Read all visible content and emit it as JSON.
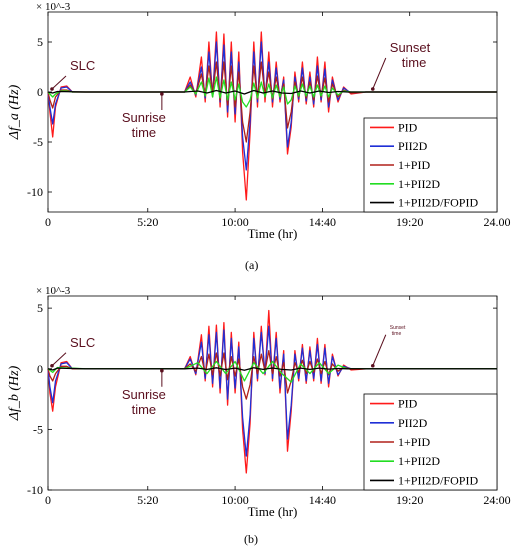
{
  "captions": [
    "(a)",
    "(b)"
  ],
  "series_styles": [
    {
      "name": "PID",
      "color": "#ff1a1a"
    },
    {
      "name": "PII2D",
      "color": "#1f2fd6"
    },
    {
      "name": "1+PID",
      "color": "#b0201a"
    },
    {
      "name": "1+PII2D",
      "color": "#22dd22"
    },
    {
      "name": "1+PII2D/FOPID",
      "color": "#000000"
    }
  ],
  "annotation_color": "#5a0f1e",
  "chart_data": [
    {
      "type": "line",
      "panel": "(a)",
      "ylabel": "Δf_a (Hz)",
      "xlabel": "Time (hr)",
      "exponent": "× 10^-3",
      "xlim": [
        0,
        24
      ],
      "ylim": [
        -12,
        8
      ],
      "xticks": [
        0,
        5.333,
        10,
        14.667,
        19.333,
        24
      ],
      "xtick_labels": [
        "0",
        "5:20",
        "10:00",
        "14:40",
        "19:20",
        "24.00"
      ],
      "yticks": [
        5,
        0,
        -5,
        -10
      ],
      "ytick_labels": [
        "5",
        "0",
        "-5",
        "-10"
      ],
      "legend_position": "bottom-right",
      "annotations": [
        {
          "text": "SLC",
          "x": 0,
          "y": 0
        },
        {
          "text": "Sunrise",
          "text2": "time",
          "x": 6.3,
          "y": 0
        },
        {
          "text": "Sunset",
          "text2": "time",
          "x": 17.2,
          "y": 0
        }
      ],
      "series": [
        {
          "name": "PID",
          "x": [
            0,
            0.1,
            0.25,
            0.4,
            0.7,
            1.0,
            1.3,
            1.7,
            2.0,
            6.0,
            7.3,
            7.6,
            7.9,
            8.2,
            8.4,
            8.6,
            8.8,
            9.0,
            9.2,
            9.4,
            9.6,
            9.8,
            10.0,
            10.2,
            10.4,
            10.6,
            10.8,
            11.0,
            11.2,
            11.4,
            11.6,
            11.8,
            12.0,
            12.2,
            12.4,
            12.6,
            12.8,
            13.0,
            13.2,
            13.4,
            13.6,
            13.8,
            14.0,
            14.2,
            14.4,
            14.6,
            14.8,
            15.0,
            15.2,
            15.5,
            15.8,
            16.2,
            17.0,
            24
          ],
          "y": [
            0,
            -2.0,
            -4.5,
            -1.5,
            0.5,
            0.6,
            0,
            0,
            0,
            0,
            0,
            1.5,
            -0.5,
            3.5,
            -1.0,
            5.0,
            -0.5,
            6.0,
            -1.5,
            5.8,
            -2.5,
            5.0,
            -3.0,
            4.0,
            -6.0,
            -10.8,
            -4.0,
            5.0,
            -1.5,
            6.0,
            -1.0,
            4.0,
            -1.5,
            3.0,
            -1.0,
            1.5,
            -6.2,
            -3.5,
            2.0,
            -1.0,
            3.0,
            -1.2,
            2.0,
            -1.5,
            3.5,
            -1.0,
            3.0,
            -2.0,
            1.5,
            -1.0,
            0.5,
            -0.2,
            0,
            0
          ]
        },
        {
          "name": "PII2D",
          "x": [
            0,
            0.1,
            0.25,
            0.4,
            0.7,
            1.0,
            1.3,
            1.7,
            2.0,
            6.0,
            7.3,
            7.6,
            7.9,
            8.2,
            8.4,
            8.6,
            8.8,
            9.0,
            9.2,
            9.4,
            9.6,
            9.8,
            10.0,
            10.2,
            10.4,
            10.6,
            10.8,
            11.0,
            11.2,
            11.4,
            11.6,
            11.8,
            12.0,
            12.2,
            12.4,
            12.6,
            12.8,
            13.0,
            13.2,
            13.4,
            13.6,
            13.8,
            14.0,
            14.2,
            14.4,
            14.6,
            14.8,
            15.0,
            15.2,
            15.5,
            15.8,
            16.2,
            17.0,
            24
          ],
          "y": [
            0,
            -1.5,
            -3.2,
            -1.2,
            0.4,
            0.5,
            0,
            0,
            0,
            0,
            0,
            1.0,
            -0.3,
            2.5,
            -0.6,
            4.0,
            -0.4,
            5.0,
            -1.0,
            4.7,
            -2.0,
            4.0,
            -2.2,
            3.0,
            -4.5,
            -7.8,
            -3.0,
            4.0,
            -1.0,
            5.0,
            -0.5,
            3.0,
            -1.0,
            2.4,
            -0.7,
            1.2,
            -5.5,
            -3.0,
            1.5,
            -0.7,
            2.4,
            -0.9,
            1.5,
            -1.2,
            2.6,
            -0.8,
            2.3,
            -1.5,
            1.2,
            -0.8,
            0.4,
            -0.1,
            0,
            0
          ]
        },
        {
          "name": "1+PID",
          "x": [
            0,
            0.1,
            0.25,
            0.4,
            0.7,
            1.0,
            1.3,
            1.7,
            2.0,
            6.0,
            7.3,
            7.6,
            7.9,
            8.2,
            8.4,
            8.6,
            8.8,
            9.0,
            9.2,
            9.4,
            9.6,
            9.8,
            10.0,
            10.2,
            10.4,
            10.6,
            10.8,
            11.0,
            11.2,
            11.4,
            11.6,
            11.8,
            12.0,
            12.2,
            12.4,
            12.6,
            12.8,
            13.0,
            13.2,
            13.4,
            13.6,
            13.8,
            14.0,
            14.2,
            14.4,
            14.6,
            14.8,
            15.0,
            15.2,
            15.5,
            15.8,
            16.2,
            17.0,
            24
          ],
          "y": [
            0,
            -0.8,
            -1.6,
            -0.5,
            0.2,
            0.2,
            0,
            0,
            0,
            0,
            0,
            0.7,
            -0.2,
            1.8,
            -0.3,
            2.6,
            -0.2,
            3.0,
            -0.8,
            3.0,
            -1.3,
            2.6,
            -1.5,
            2.0,
            -3.0,
            -5.0,
            -2.0,
            2.6,
            -0.7,
            3.0,
            -0.3,
            2.0,
            -0.7,
            1.5,
            -0.5,
            0.8,
            -3.6,
            -2.0,
            1.0,
            -0.5,
            1.5,
            -0.6,
            1.0,
            -0.8,
            1.6,
            -0.5,
            1.4,
            -1.0,
            0.8,
            -0.5,
            0.2,
            -0.1,
            0,
            0
          ]
        },
        {
          "name": "1+PII2D",
          "x": [
            0,
            0.1,
            0.25,
            0.4,
            0.7,
            1.0,
            1.3,
            1.7,
            2.0,
            6.0,
            7.3,
            7.6,
            7.9,
            8.2,
            8.4,
            8.6,
            8.8,
            9.0,
            9.2,
            9.4,
            9.6,
            9.8,
            10.0,
            10.2,
            10.4,
            10.6,
            10.8,
            11.0,
            11.2,
            11.4,
            11.6,
            11.8,
            12.0,
            12.2,
            12.4,
            12.6,
            12.8,
            13.0,
            13.2,
            13.4,
            13.6,
            13.8,
            14.0,
            14.2,
            14.4,
            14.6,
            14.8,
            15.0,
            15.2,
            15.5,
            15.8,
            16.2,
            17.0,
            24
          ],
          "y": [
            0,
            -0.2,
            -0.5,
            -0.2,
            0.1,
            0.1,
            0,
            0,
            0,
            0,
            0,
            0.5,
            -0.2,
            1.0,
            -0.4,
            1.4,
            -0.5,
            1.5,
            -0.6,
            1.2,
            -0.8,
            1.0,
            -0.8,
            0.8,
            -1.0,
            -1.5,
            -0.8,
            0.9,
            -0.6,
            1.0,
            -0.5,
            0.8,
            -0.6,
            0.7,
            -0.5,
            0.5,
            -1.2,
            -0.8,
            0.6,
            -0.4,
            0.8,
            -0.4,
            0.6,
            -0.5,
            0.7,
            -0.4,
            0.6,
            -0.5,
            0.4,
            -0.3,
            0.1,
            0,
            0,
            0
          ]
        },
        {
          "name": "1+PII2D/FOPID",
          "x": [
            0,
            0.25,
            0.5,
            2.0,
            7.3,
            8.0,
            8.5,
            9.0,
            9.5,
            10.0,
            10.5,
            11.0,
            11.5,
            12.0,
            12.5,
            13.0,
            13.5,
            14.0,
            14.5,
            15.0,
            15.5,
            16.0,
            17.0,
            24
          ],
          "y": [
            0,
            -0.1,
            0.05,
            0,
            0,
            0.1,
            -0.1,
            0.15,
            -0.1,
            0.1,
            -0.2,
            0.15,
            -0.1,
            0.1,
            -0.1,
            -0.15,
            0.1,
            -0.1,
            0.1,
            -0.05,
            0.05,
            0,
            0,
            0
          ]
        }
      ]
    },
    {
      "type": "line",
      "panel": "(b)",
      "ylabel": "Δf_b (Hz)",
      "xlabel": "Time (hr)",
      "exponent": "× 10^-3",
      "xlim": [
        0,
        24
      ],
      "ylim": [
        -10,
        6
      ],
      "xticks": [
        0,
        5.333,
        10,
        14.667,
        19.333,
        24
      ],
      "xtick_labels": [
        "0",
        "5:20",
        "10:00",
        "14:40",
        "19:20",
        "24:00"
      ],
      "yticks": [
        5,
        0,
        -5,
        -10
      ],
      "ytick_labels": [
        "5",
        "0",
        "-5",
        "-10"
      ],
      "legend_position": "bottom-right",
      "annotations": [
        {
          "text": "SLC",
          "x": 0,
          "y": 0
        },
        {
          "text": "Sunrise",
          "text2": "time",
          "x": 6.3,
          "y": 0
        },
        {
          "text": "Sunset",
          "text2": "time",
          "x": 17.2,
          "y": 0
        }
      ],
      "series": [
        {
          "name": "PID",
          "x": [
            0,
            0.1,
            0.25,
            0.4,
            0.7,
            1.0,
            1.3,
            1.7,
            2.0,
            6.0,
            7.3,
            7.6,
            7.9,
            8.2,
            8.4,
            8.6,
            8.8,
            9.0,
            9.2,
            9.4,
            9.6,
            9.8,
            10.0,
            10.2,
            10.4,
            10.6,
            10.8,
            11.0,
            11.2,
            11.4,
            11.6,
            11.8,
            12.0,
            12.2,
            12.4,
            12.6,
            12.8,
            13.0,
            13.2,
            13.4,
            13.6,
            13.8,
            14.0,
            14.2,
            14.4,
            14.6,
            14.8,
            15.0,
            15.2,
            15.5,
            15.8,
            16.2,
            17.0,
            24
          ],
          "y": [
            0,
            -2.0,
            -3.5,
            -1.5,
            0.5,
            0.6,
            0,
            0,
            0,
            0,
            0,
            1.0,
            -0.5,
            2.8,
            -1.0,
            3.5,
            -1.5,
            3.6,
            -2.0,
            3.8,
            -3.0,
            3.0,
            -2.0,
            2.2,
            -5.0,
            -8.6,
            -4.5,
            3.0,
            -1.0,
            3.5,
            -0.5,
            4.8,
            -1.0,
            3.0,
            -2.0,
            1.5,
            -6.8,
            -3.5,
            1.5,
            -1.0,
            2.0,
            -1.2,
            1.8,
            -1.0,
            2.5,
            -1.2,
            2.0,
            -1.5,
            1.2,
            -0.6,
            0.3,
            -0.1,
            0,
            0
          ]
        },
        {
          "name": "PII2D",
          "x": [
            0,
            0.1,
            0.25,
            0.4,
            0.7,
            1.0,
            1.3,
            1.7,
            2.0,
            6.0,
            7.3,
            7.6,
            7.9,
            8.2,
            8.4,
            8.6,
            8.8,
            9.0,
            9.2,
            9.4,
            9.6,
            9.8,
            10.0,
            10.2,
            10.4,
            10.6,
            10.8,
            11.0,
            11.2,
            11.4,
            11.6,
            11.8,
            12.0,
            12.2,
            12.4,
            12.6,
            12.8,
            13.0,
            13.2,
            13.4,
            13.6,
            13.8,
            14.0,
            14.2,
            14.4,
            14.6,
            14.8,
            15.0,
            15.2,
            15.5,
            15.8,
            16.2,
            17.0,
            24
          ],
          "y": [
            0,
            -1.5,
            -2.8,
            -1.0,
            0.4,
            0.5,
            0,
            0,
            0,
            0,
            0,
            0.8,
            -0.4,
            2.2,
            -0.8,
            2.8,
            -1.2,
            3.0,
            -1.6,
            3.2,
            -2.5,
            2.5,
            -1.6,
            1.8,
            -4.0,
            -7.2,
            -3.8,
            2.5,
            -0.8,
            3.0,
            -0.4,
            3.5,
            -0.8,
            2.5,
            -1.6,
            1.2,
            -5.8,
            -3.0,
            1.2,
            -0.8,
            1.7,
            -1.0,
            1.5,
            -0.8,
            2.0,
            -1.0,
            1.7,
            -1.2,
            1.0,
            -0.5,
            0.2,
            0,
            0,
            0
          ]
        },
        {
          "name": "1+PID",
          "x": [
            0,
            0.1,
            0.25,
            0.4,
            0.7,
            1.0,
            1.3,
            1.7,
            2.0,
            6.0,
            7.3,
            7.6,
            7.9,
            8.2,
            8.4,
            8.6,
            8.8,
            9.0,
            9.2,
            9.4,
            9.6,
            9.8,
            10.0,
            10.2,
            10.4,
            10.6,
            10.8,
            11.0,
            11.2,
            11.4,
            11.6,
            11.8,
            12.0,
            12.2,
            12.4,
            12.6,
            12.8,
            13.0,
            13.2,
            13.4,
            13.6,
            13.8,
            14.0,
            14.2,
            14.4,
            14.6,
            14.8,
            15.0,
            15.2,
            15.5,
            15.8,
            16.2,
            17.0,
            24
          ],
          "y": [
            0,
            -0.6,
            -1.0,
            -0.4,
            0.2,
            0.2,
            0,
            0,
            0,
            0,
            0,
            0.4,
            -0.2,
            1.0,
            -0.4,
            1.2,
            -0.5,
            1.3,
            -0.6,
            1.3,
            -0.9,
            1.0,
            -0.6,
            0.8,
            -1.5,
            -2.5,
            -1.3,
            1.0,
            -0.4,
            1.2,
            -0.2,
            1.5,
            -0.4,
            1.0,
            -0.6,
            0.5,
            -2.0,
            -1.0,
            0.5,
            -0.3,
            0.7,
            -0.4,
            0.6,
            -0.3,
            0.8,
            -0.4,
            0.6,
            -0.5,
            0.4,
            -0.2,
            0.1,
            0,
            0,
            0
          ]
        },
        {
          "name": "1+PII2D",
          "x": [
            0,
            0.25,
            0.5,
            2.0,
            7.3,
            8.0,
            8.5,
            9.0,
            9.5,
            10.0,
            10.5,
            11.0,
            11.5,
            12.0,
            12.5,
            13.0,
            13.5,
            14.0,
            14.5,
            15.0,
            15.5,
            16.0,
            17.0,
            24
          ],
          "y": [
            0,
            -0.3,
            0.1,
            0,
            0,
            0.5,
            -0.4,
            0.6,
            -0.4,
            0.6,
            -1.0,
            0.5,
            -0.4,
            0.6,
            -0.4,
            -1.1,
            0.4,
            -0.4,
            0.5,
            -0.4,
            0.3,
            0,
            0,
            0
          ]
        },
        {
          "name": "1+PII2D/FOPID",
          "x": [
            0,
            0.25,
            0.5,
            2.0,
            7.3,
            8.0,
            8.5,
            9.0,
            9.5,
            10.0,
            10.5,
            11.0,
            11.5,
            12.0,
            12.5,
            13.0,
            13.5,
            14.0,
            14.5,
            15.0,
            15.5,
            16.0,
            17.0,
            24
          ],
          "y": [
            0,
            -0.1,
            0.05,
            0,
            0,
            0.05,
            -0.05,
            0.08,
            -0.06,
            0.05,
            -0.12,
            0.08,
            -0.05,
            0.06,
            -0.05,
            -0.1,
            0.05,
            -0.05,
            0.05,
            -0.03,
            0.02,
            0,
            0,
            0
          ]
        }
      ]
    }
  ]
}
